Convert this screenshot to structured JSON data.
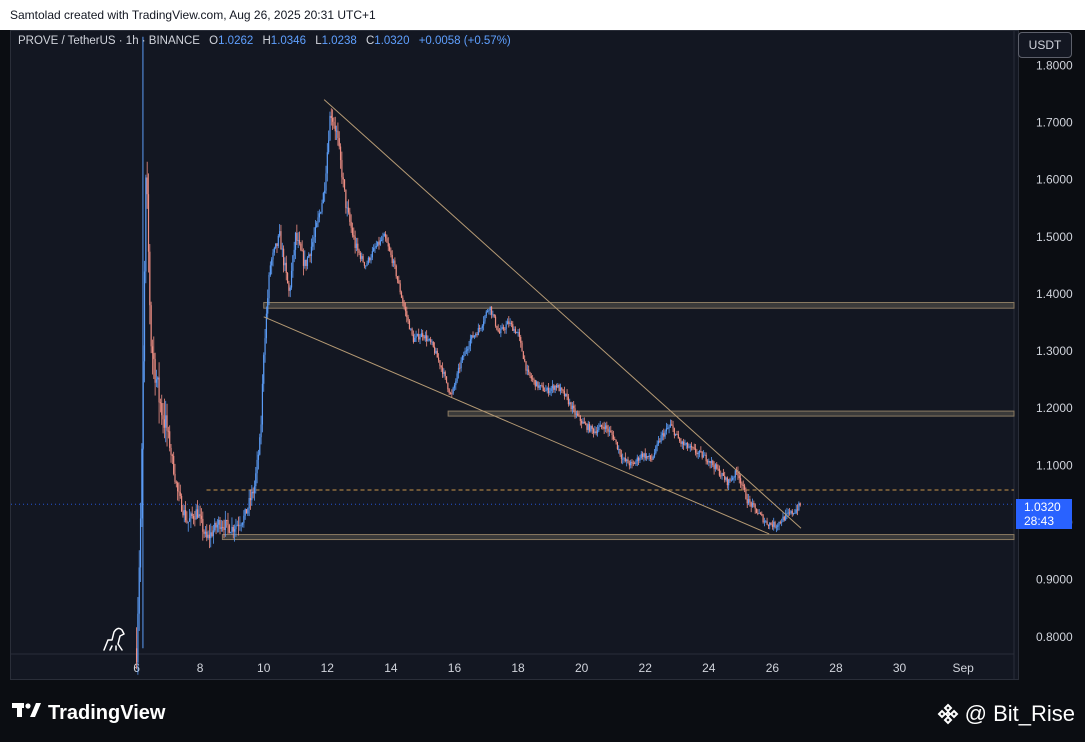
{
  "header": {
    "caption": "Samtolad created with TradingView.com, Aug 26, 2025 20:31 UTC+1"
  },
  "legend": {
    "symbol": "PROVE / TetherUS · 1h · BINANCE",
    "o_label": "O",
    "o_value": "1.0262",
    "h_label": "H",
    "h_value": "1.0346",
    "l_label": "L",
    "l_value": "1.0238",
    "c_label": "C",
    "c_value": "1.0320",
    "change": "+0.0058 (+0.57%)"
  },
  "unit_button": "USDT",
  "price_tag": {
    "price": "1.0320",
    "countdown": "28:43"
  },
  "footer": {
    "brand": "TradingView",
    "handle": "@ Bit_Rise"
  },
  "colors": {
    "background": "#131722",
    "up": "#5b9cf6",
    "down": "#ef8f84",
    "trendline": "#b59a74",
    "zone": "#3a3a3a",
    "price_tag": "#2962ff"
  },
  "chart_data": {
    "type": "candlestick",
    "ylim": [
      0.77,
      1.86
    ],
    "y_ticks": [
      0.8,
      0.9,
      1.0,
      1.1,
      1.2,
      1.3,
      1.4,
      1.5,
      1.6,
      1.7,
      1.8
    ],
    "y_tick_labels": [
      "0.8000",
      "0.9000",
      "1.0000",
      "1.1000",
      "1.2000",
      "1.3000",
      "1.4000",
      "1.5000",
      "1.6000",
      "1.7000",
      "1.8000"
    ],
    "x_ticks": [
      6,
      8,
      10,
      12,
      14,
      16,
      18,
      20,
      22,
      24,
      26,
      28,
      30,
      32
    ],
    "x_tick_labels": [
      "6",
      "8",
      "10",
      "12",
      "14",
      "16",
      "18",
      "20",
      "22",
      "24",
      "26",
      "28",
      "30",
      "Sep"
    ],
    "xlim": [
      2.05,
      33.6
    ],
    "price_path": [
      [
        6.0,
        0.78
      ],
      [
        6.15,
        1.05
      ],
      [
        6.3,
        1.62
      ],
      [
        6.45,
        1.32
      ],
      [
        6.7,
        1.22
      ],
      [
        7.0,
        1.15
      ],
      [
        7.3,
        1.05
      ],
      [
        7.6,
        1.0
      ],
      [
        7.9,
        1.02
      ],
      [
        8.2,
        0.97
      ],
      [
        8.6,
        1.0
      ],
      [
        9.0,
        0.99
      ],
      [
        9.4,
        1.01
      ],
      [
        9.7,
        1.06
      ],
      [
        9.9,
        1.15
      ],
      [
        10.0,
        1.3
      ],
      [
        10.2,
        1.45
      ],
      [
        10.5,
        1.5
      ],
      [
        10.8,
        1.4
      ],
      [
        11.0,
        1.5
      ],
      [
        11.3,
        1.45
      ],
      [
        11.6,
        1.5
      ],
      [
        11.9,
        1.58
      ],
      [
        12.1,
        1.72
      ],
      [
        12.3,
        1.68
      ],
      [
        12.6,
        1.55
      ],
      [
        12.9,
        1.48
      ],
      [
        13.2,
        1.45
      ],
      [
        13.5,
        1.48
      ],
      [
        13.8,
        1.5
      ],
      [
        14.1,
        1.45
      ],
      [
        14.4,
        1.38
      ],
      [
        14.7,
        1.32
      ],
      [
        15.0,
        1.33
      ],
      [
        15.3,
        1.31
      ],
      [
        15.6,
        1.27
      ],
      [
        15.9,
        1.22
      ],
      [
        16.2,
        1.28
      ],
      [
        16.5,
        1.32
      ],
      [
        16.8,
        1.34
      ],
      [
        17.1,
        1.38
      ],
      [
        17.4,
        1.33
      ],
      [
        17.7,
        1.35
      ],
      [
        18.0,
        1.33
      ],
      [
        18.3,
        1.26
      ],
      [
        18.6,
        1.24
      ],
      [
        18.9,
        1.23
      ],
      [
        19.2,
        1.24
      ],
      [
        19.5,
        1.22
      ],
      [
        19.8,
        1.19
      ],
      [
        20.1,
        1.17
      ],
      [
        20.4,
        1.16
      ],
      [
        20.7,
        1.17
      ],
      [
        21.0,
        1.15
      ],
      [
        21.3,
        1.11
      ],
      [
        21.6,
        1.1
      ],
      [
        21.9,
        1.12
      ],
      [
        22.2,
        1.11
      ],
      [
        22.5,
        1.15
      ],
      [
        22.8,
        1.17
      ],
      [
        23.1,
        1.14
      ],
      [
        23.4,
        1.13
      ],
      [
        23.7,
        1.12
      ],
      [
        24.0,
        1.11
      ],
      [
        24.3,
        1.09
      ],
      [
        24.6,
        1.07
      ],
      [
        24.9,
        1.09
      ],
      [
        25.2,
        1.04
      ],
      [
        25.5,
        1.02
      ],
      [
        25.8,
        1.0
      ],
      [
        26.1,
        0.995
      ],
      [
        26.4,
        1.01
      ],
      [
        26.7,
        1.02
      ],
      [
        26.9,
        1.032
      ]
    ],
    "horizontal_zones": [
      {
        "x_start": 10.0,
        "y_low": 1.375,
        "y_high": 1.385
      },
      {
        "x_start": 15.8,
        "y_low": 1.187,
        "y_high": 1.195
      },
      {
        "x_start": 8.7,
        "y_low": 0.972,
        "y_high": 0.979
      }
    ],
    "trendlines": [
      {
        "x1": 11.9,
        "y1": 1.74,
        "x2": 26.9,
        "y2": 0.99
      },
      {
        "x1": 10.0,
        "y1": 1.36,
        "x2": 25.9,
        "y2": 0.98
      }
    ],
    "dashed_level": {
      "y": 1.057,
      "x_start": 8.2
    },
    "current_price_line": 1.032
  }
}
